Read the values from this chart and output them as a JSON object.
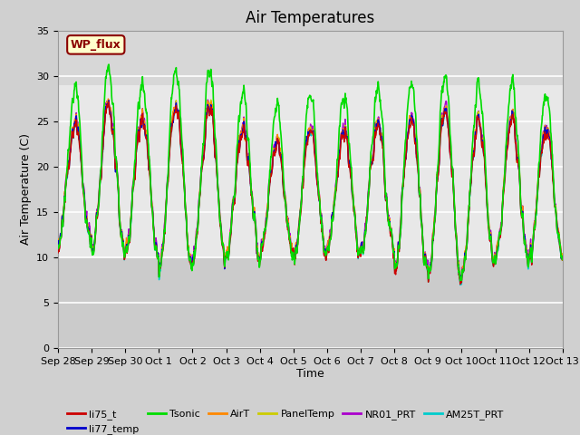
{
  "title": "Air Temperatures",
  "ylabel": "Air Temperature (C)",
  "xlabel": "Time",
  "ylim": [
    0,
    35
  ],
  "yticks": [
    0,
    5,
    10,
    15,
    20,
    25,
    30,
    35
  ],
  "series": {
    "li75_t": {
      "color": "#cc0000",
      "lw": 1.0
    },
    "li77_temp": {
      "color": "#0000cc",
      "lw": 1.0
    },
    "Tsonic": {
      "color": "#00dd00",
      "lw": 1.2
    },
    "AirT": {
      "color": "#ff8800",
      "lw": 1.0
    },
    "PanelTemp": {
      "color": "#cccc00",
      "lw": 1.0
    },
    "NR01_PRT": {
      "color": "#aa00cc",
      "lw": 1.0
    },
    "AM25T_PRT": {
      "color": "#00cccc",
      "lw": 1.0
    }
  },
  "annotation_text": "WP_flux",
  "annotation_color": "#8B0000",
  "annotation_bg": "#ffffcc",
  "annotation_border": "#8B0000",
  "n_days": 15,
  "xticklabels": [
    "Sep 28",
    "Sep 29",
    "Sep 30",
    "Oct 1",
    "Oct 2",
    "Oct 3",
    "Oct 4",
    "Oct 5",
    "Oct 6",
    "Oct 7",
    "Oct 8",
    "Oct 9",
    "Oct 10",
    "Oct 11",
    "Oct 12",
    "Oct 13"
  ],
  "title_fontsize": 12,
  "axis_fontsize": 9,
  "tick_fontsize": 8,
  "figsize": [
    6.4,
    4.8
  ],
  "dpi": 100
}
